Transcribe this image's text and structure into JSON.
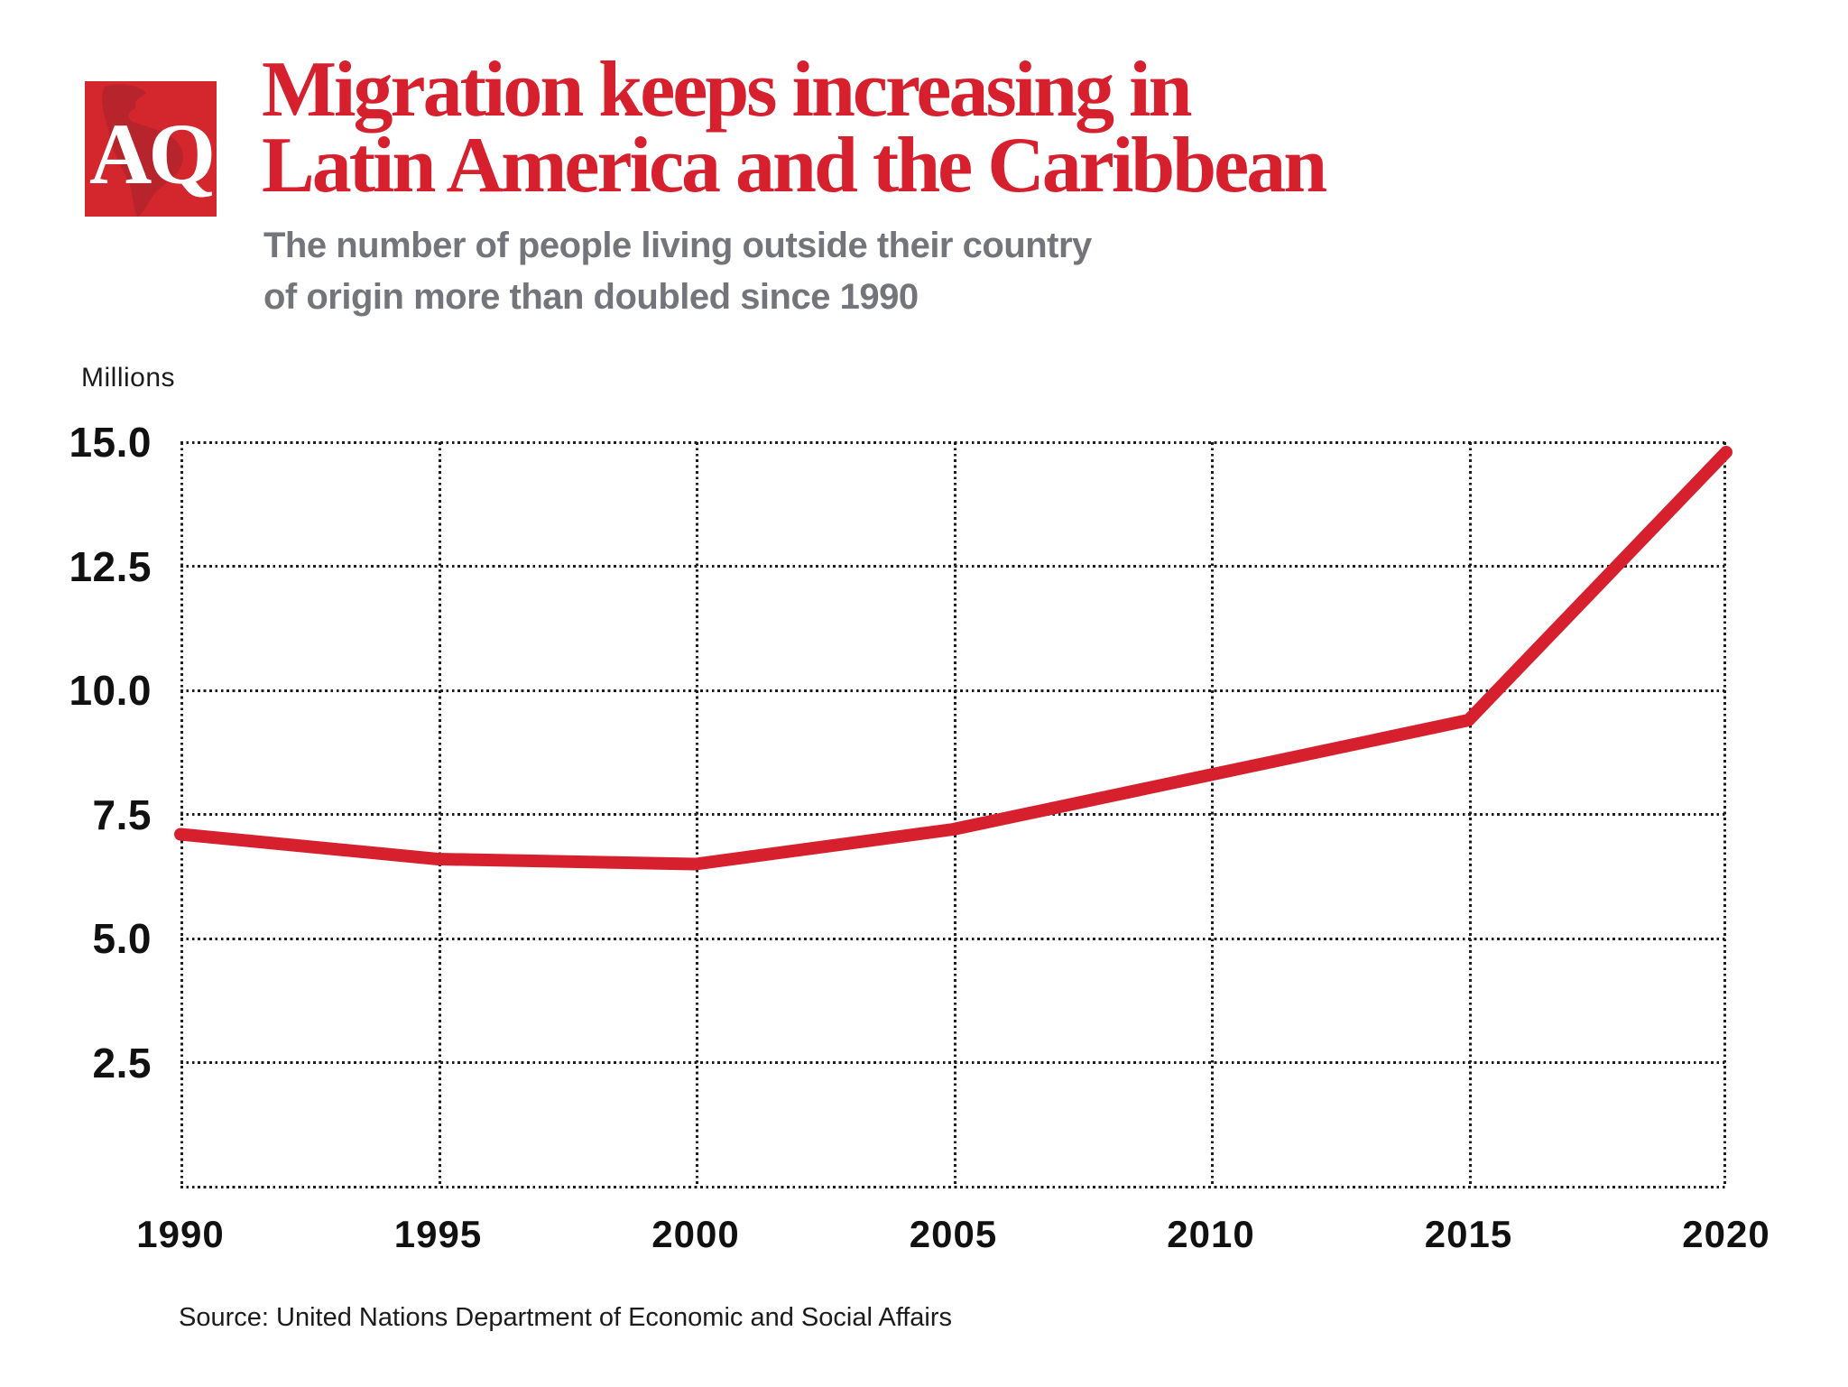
{
  "header": {
    "logo_text": "AQ",
    "title_line1": "Migration keeps increasing in",
    "title_line2": "Latin America and the Caribbean",
    "subtitle_line1": "The number of people living outside their country",
    "subtitle_line2": "of origin more than doubled since 1990"
  },
  "chart_data": {
    "type": "line",
    "title": "Migration keeps increasing in Latin America and the Caribbean",
    "subtitle": "The number of people living outside their country of origin more than doubled since 1990",
    "unit_label": "Millions",
    "categories": [
      "1990",
      "1995",
      "2000",
      "2005",
      "2010",
      "2015",
      "2020"
    ],
    "values": [
      7.1,
      6.6,
      6.5,
      7.2,
      8.3,
      9.4,
      14.8
    ],
    "xlabel": "",
    "ylabel": "Millions",
    "ylim": [
      0,
      15
    ],
    "yticks": [
      {
        "value": 15.0,
        "label": "15.0"
      },
      {
        "value": 12.5,
        "label": "12.5"
      },
      {
        "value": 10.0,
        "label": "10.0"
      },
      {
        "value": 7.5,
        "label": "7.5"
      },
      {
        "value": 5.0,
        "label": "5.0"
      },
      {
        "value": 2.5,
        "label": "2.5"
      }
    ],
    "baseline_value": 0,
    "grid": "dotted",
    "legend": "none",
    "line_color": "#d7202e",
    "line_width": 14
  },
  "footer": {
    "source": "Source: United Nations Department of Economic and Social Affairs"
  },
  "colors": {
    "brand_red": "#d7202e",
    "logo_red": "#d4262d",
    "map_red": "#a8242b",
    "subtitle_gray": "#74757a",
    "text_black": "#1b1b1b",
    "background": "#ffffff"
  }
}
